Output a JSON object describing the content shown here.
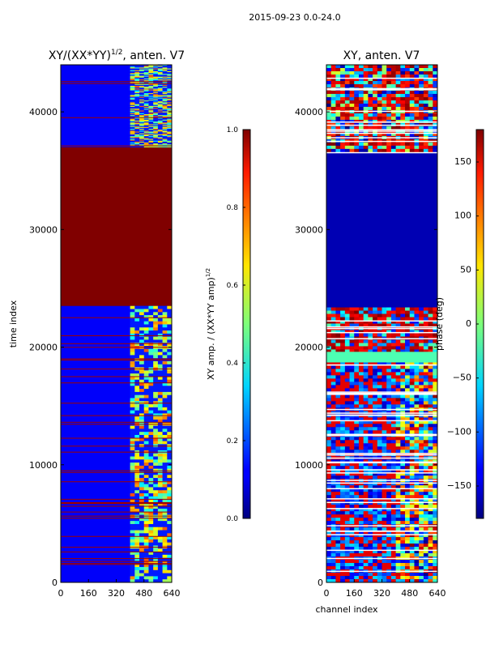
{
  "suptitle": "2015-09-23 0.0-24.0",
  "chart_data": [
    {
      "type": "heatmap",
      "title": "XY/(XX*YY)",
      "title_superscript": "1/2",
      "title_suffix": ", anten. V7",
      "xlabel": "",
      "ylabel": "time index",
      "xlim": [
        0,
        640
      ],
      "ylim": [
        0,
        44000
      ],
      "xticks": [
        0,
        160,
        320,
        480,
        640
      ],
      "yticks": [
        0,
        10000,
        20000,
        30000,
        40000
      ],
      "colorbar": {
        "label_main": "XY amp. / (XX*YY amp)",
        "label_superscript": "1/2",
        "range": [
          0.0,
          1.0
        ],
        "ticks": [
          "0.0",
          "0.2",
          "0.4",
          "0.6",
          "0.8",
          "1.0"
        ],
        "colormap": "jet"
      },
      "regions": [
        {
          "y_from": 0,
          "y_to": 23500,
          "value": 0.1,
          "band_channels": [
            400,
            640
          ],
          "band_value": "mixed"
        },
        {
          "y_from": 23500,
          "y_to": 37000,
          "value": 1.0
        },
        {
          "y_from": 37000,
          "y_to": 44000,
          "value": 0.1,
          "band_channels": [
            400,
            640
          ],
          "band_value": "mixed"
        }
      ]
    },
    {
      "type": "heatmap",
      "title": "XY, anten. V7",
      "xlabel": "channel index",
      "ylabel": "",
      "xlim": [
        0,
        640
      ],
      "ylim": [
        0,
        44000
      ],
      "xticks": [
        0,
        160,
        320,
        480,
        640
      ],
      "yticks": [
        0,
        10000,
        20000,
        30000,
        40000
      ],
      "colorbar": {
        "label_main": "phase (deg)",
        "range": [
          -180,
          180
        ],
        "ticks": [
          "−150",
          "−100",
          "−50",
          "0",
          "50",
          "100",
          "150"
        ],
        "colormap": "jet"
      },
      "regions": [
        {
          "y_from": 0,
          "y_to": 19000,
          "value": "mixed phase"
        },
        {
          "y_from": 19000,
          "y_to": 23500,
          "value": "mixed phase"
        },
        {
          "y_from": 23500,
          "y_to": 36500,
          "value": -180
        },
        {
          "y_from": 36500,
          "y_to": 44000,
          "value": "mixed phase"
        }
      ]
    }
  ]
}
